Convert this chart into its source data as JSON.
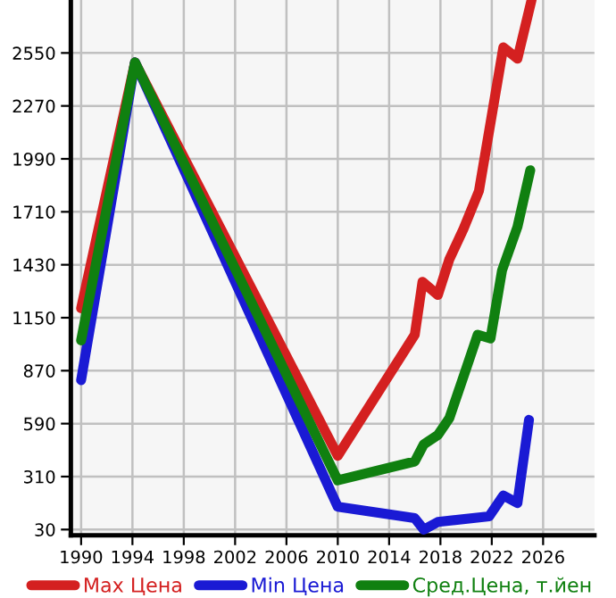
{
  "chart_data": {
    "type": "line",
    "xlim": [
      1989.2,
      2030
    ],
    "ylim": [
      0,
      2830
    ],
    "xticks": [
      1990,
      1994,
      1998,
      2002,
      2006,
      2010,
      2014,
      2018,
      2022,
      2026
    ],
    "yticks": [
      30,
      310,
      590,
      870,
      1150,
      1430,
      1710,
      1990,
      2270,
      2550
    ],
    "grid": true,
    "legend": "bottom",
    "marker": "none",
    "line_style": "solid",
    "series": [
      {
        "name": "Max Цена",
        "color": "#d42020",
        "x": [
          1990,
          1994.2,
          2010,
          2016,
          2016.6,
          2017.8,
          2018.7,
          2019.8,
          2021,
          2021.9,
          2022.9,
          2024,
          2025.1
        ],
        "values": [
          1200,
          2500,
          420,
          1060,
          1340,
          1270,
          1460,
          1620,
          1820,
          2180,
          2580,
          2520,
          2830
        ]
      },
      {
        "name": "Min Цена",
        "color": "#1a1ad4",
        "x": [
          1990,
          1994.2,
          2010,
          2016,
          2016.7,
          2017.8,
          2021.8,
          2022.9,
          2024,
          2024.9
        ],
        "values": [
          820,
          2500,
          150,
          90,
          30,
          70,
          100,
          210,
          170,
          610
        ]
      },
      {
        "name": "Сред.Цена, т.йен",
        "color": "#108010",
        "x": [
          1990,
          1994.2,
          2010,
          2016,
          2016.7,
          2017.8,
          2018.7,
          2019.8,
          2020.9,
          2021.9,
          2022.8,
          2024,
          2025
        ],
        "values": [
          1030,
          2500,
          290,
          390,
          480,
          530,
          620,
          840,
          1060,
          1040,
          1400,
          1630,
          1930
        ]
      }
    ]
  }
}
